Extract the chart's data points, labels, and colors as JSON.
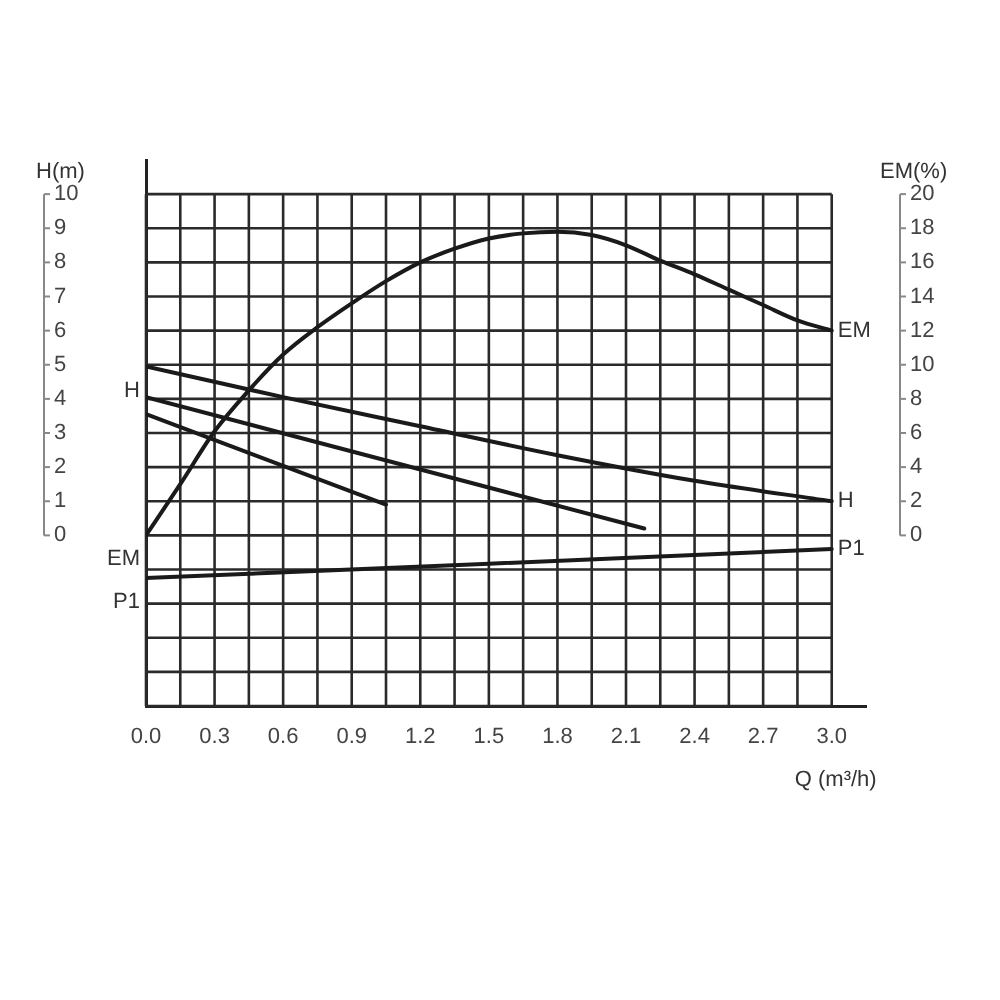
{
  "chart_data": {
    "type": "line",
    "xlabel": "Q (m³/h)",
    "ylabel": "H(m)",
    "y2label": "EM(%)",
    "xlim": [
      0,
      3.15
    ],
    "xticks": [
      {
        "value": 0,
        "label": "0.0"
      },
      {
        "value": 0.15,
        "label": null
      },
      0.3,
      {
        "value": 0.45,
        "label": null
      },
      0.6,
      {
        "value": 0.75,
        "label": null
      },
      0.9,
      {
        "value": 1.05,
        "label": null
      },
      1.2,
      {
        "value": 1.35,
        "label": null
      },
      1.5,
      {
        "value": 1.65,
        "label": null
      },
      1.8,
      {
        "value": 1.95,
        "label": null
      },
      2.1,
      {
        "value": 2.25,
        "label": null
      },
      2.4,
      {
        "value": 2.55,
        "label": null
      },
      2.7,
      {
        "value": 2.85,
        "label": null
      },
      {
        "value": 3,
        "label": "3.0"
      }
    ],
    "ylim": [
      -5,
      11
    ],
    "yticks": [
      {
        "value": -5,
        "label": null
      },
      {
        "value": -4,
        "label": null
      },
      {
        "value": -3,
        "label": null
      },
      {
        "value": -2,
        "label": null
      },
      {
        "value": -1,
        "label": null
      },
      0,
      1,
      2,
      3,
      4,
      5,
      6,
      7,
      8,
      9,
      10
    ],
    "y2lim": [
      -10,
      22
    ],
    "y2ticks": [
      0,
      2,
      4,
      6,
      8,
      10,
      12,
      14,
      16,
      18,
      20
    ],
    "grid": true,
    "legend": false,
    "marker": "none",
    "line_style": "solid",
    "series": [
      {
        "name": "H",
        "color": "#1a1a1a",
        "x": [
          0,
          0.6,
          1.2,
          1.8,
          2.4,
          3.0
        ],
        "values": [
          4.95,
          4.05,
          3.2,
          2.35,
          1.6,
          1.0
        ]
      },
      {
        "color": "#1a1a1a",
        "x": [
          0,
          2.18
        ],
        "values": [
          4.05,
          0.2
        ]
      },
      {
        "color": "#1a1a1a",
        "x": [
          0,
          1.05
        ],
        "values": [
          3.55,
          0.9
        ]
      },
      {
        "name": "EM",
        "color": "#1a1a1a",
        "axis": "y2",
        "x": [
          0,
          0.15,
          0.3,
          0.45,
          0.6,
          0.75,
          0.9,
          1.05,
          1.2,
          1.35,
          1.5,
          1.65,
          1.8,
          1.95,
          2.1,
          2.25,
          2.4,
          2.55,
          2.7,
          2.85,
          3.0
        ],
        "values": [
          0,
          3.0,
          6.1,
          8.5,
          10.6,
          12.2,
          13.6,
          14.9,
          16.0,
          16.8,
          17.4,
          17.7,
          17.8,
          17.6,
          17.0,
          16.1,
          15.3,
          14.4,
          13.5,
          12.6,
          12.0
        ]
      },
      {
        "name": "P1",
        "color": "#1a1a1a",
        "x": [
          0,
          1.5,
          3.0
        ],
        "values": [
          -1.25,
          -0.83,
          -0.4
        ]
      }
    ]
  }
}
